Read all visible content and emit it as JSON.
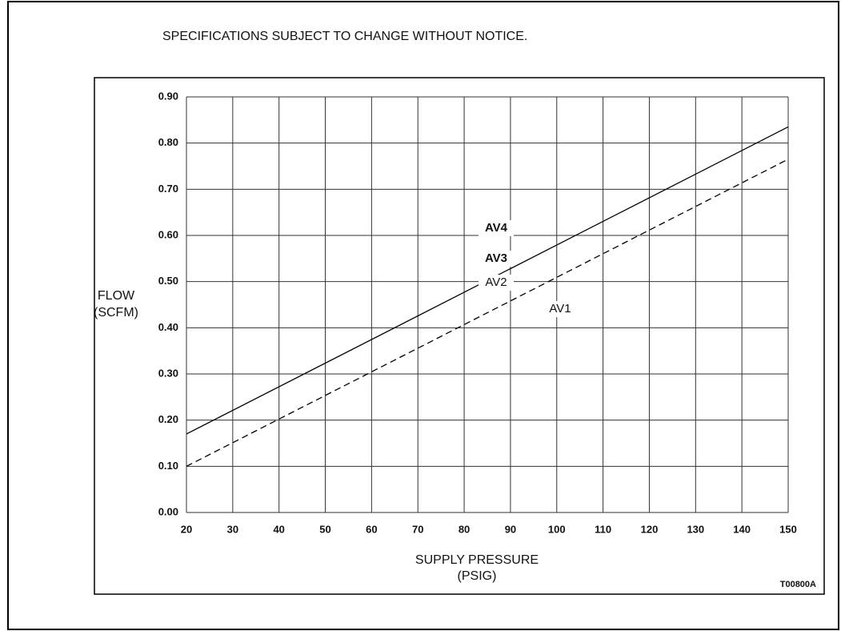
{
  "chart_data": {
    "type": "line",
    "header": "SPECIFICATIONS SUBJECT TO CHANGE WITHOUT NOTICE.",
    "y_label": [
      "FLOW",
      "(SCFM)"
    ],
    "x_label": [
      "SUPPLY PRESSURE",
      "(PSIG)"
    ],
    "figure_id": "T00800A",
    "annotations": [
      "AV4",
      "AV3",
      "AV2",
      "AV1"
    ],
    "x": [
      20,
      150
    ],
    "series": [
      {
        "color": "#000000",
        "line_style": "solid",
        "values": [
          0.17,
          0.835
        ]
      },
      {
        "color": "#000000",
        "line_style": "dashed",
        "values": [
          0.1,
          0.765
        ]
      }
    ],
    "xlim": [
      20,
      150
    ],
    "ylim": [
      0,
      0.9
    ],
    "xticks": [
      20,
      30,
      40,
      50,
      60,
      70,
      80,
      90,
      100,
      110,
      120,
      130,
      140,
      150
    ],
    "yticks": [
      {
        "value": 0,
        "label": "0.00"
      },
      {
        "value": 0.1,
        "label": "0.10"
      },
      {
        "value": 0.2,
        "label": "0.20"
      },
      {
        "value": 0.3,
        "label": "0.30"
      },
      {
        "value": 0.4,
        "label": "0.40"
      },
      {
        "value": 0.5,
        "label": "0.50"
      },
      {
        "value": 0.6,
        "label": "0.60"
      },
      {
        "value": 0.7,
        "label": "0.70"
      },
      {
        "value": 0.8,
        "label": "0.80"
      },
      {
        "value": 0.9,
        "label": "0.90"
      }
    ],
    "grid": true
  }
}
